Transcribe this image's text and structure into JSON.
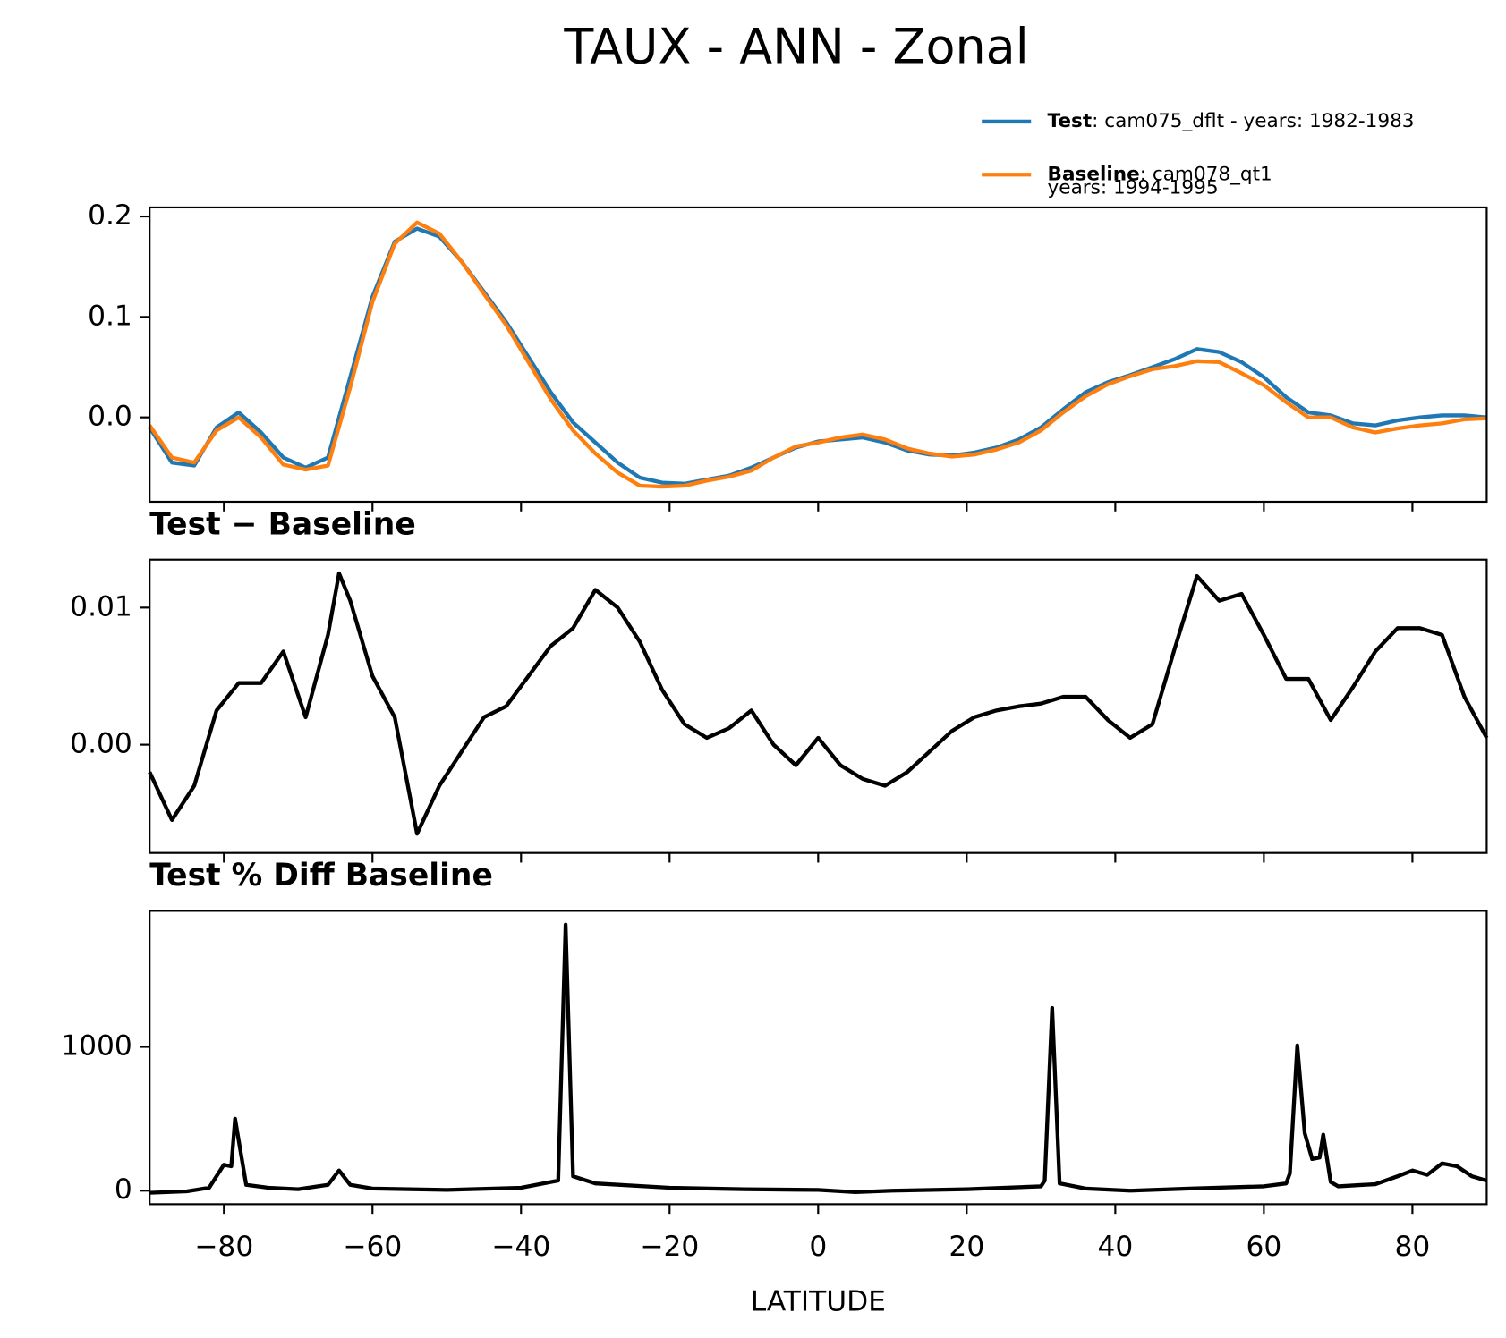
{
  "title": "TAUX - ANN - Zonal",
  "chart_data": [
    {
      "type": "line",
      "x": [
        -90,
        -87,
        -84,
        -81,
        -78,
        -75,
        -72,
        -69,
        -66,
        -63,
        -60,
        -57,
        -54,
        -51,
        -48,
        -45,
        -42,
        -39,
        -36,
        -33,
        -30,
        -27,
        -24,
        -21,
        -18,
        -15,
        -12,
        -9,
        -6,
        -3,
        0,
        3,
        6,
        9,
        12,
        15,
        18,
        21,
        24,
        27,
        30,
        33,
        36,
        39,
        42,
        45,
        48,
        51,
        54,
        57,
        60,
        63,
        66,
        69,
        72,
        75,
        78,
        81,
        84,
        87,
        90
      ],
      "series": [
        {
          "name": "Test",
          "label": ": cam075_dflt - years: 1982-1983",
          "color": "#1f77b4",
          "values": [
            -0.01,
            -0.045,
            -0.048,
            -0.01,
            0.005,
            -0.015,
            -0.04,
            -0.05,
            -0.04,
            0.04,
            0.12,
            0.175,
            0.188,
            0.18,
            0.155,
            0.125,
            0.095,
            0.06,
            0.025,
            -0.005,
            -0.025,
            -0.045,
            -0.06,
            -0.065,
            -0.066,
            -0.062,
            -0.058,
            -0.05,
            -0.04,
            -0.03,
            -0.024,
            -0.022,
            -0.02,
            -0.025,
            -0.033,
            -0.037,
            -0.038,
            -0.035,
            -0.03,
            -0.022,
            -0.01,
            0.008,
            0.025,
            0.035,
            0.042,
            0.05,
            0.058,
            0.068,
            0.065,
            0.055,
            0.04,
            0.02,
            0.005,
            0.002,
            -0.006,
            -0.008,
            -0.003,
            0.0,
            0.002,
            0.002,
            0.0
          ]
        },
        {
          "name": "Baseline",
          "label": [
            ": cam078_qt1",
            "years: 1994-1995"
          ],
          "color": "#ff7f0e",
          "values": [
            -0.008,
            -0.04,
            -0.045,
            -0.013,
            0.0,
            -0.02,
            -0.047,
            -0.052,
            -0.048,
            0.03,
            0.115,
            0.173,
            0.194,
            0.183,
            0.155,
            0.123,
            0.092,
            0.055,
            0.018,
            -0.013,
            -0.036,
            -0.055,
            -0.068,
            -0.069,
            -0.068,
            -0.063,
            -0.059,
            -0.053,
            -0.04,
            -0.029,
            -0.025,
            -0.02,
            -0.017,
            -0.022,
            -0.031,
            -0.036,
            -0.039,
            -0.037,
            -0.032,
            -0.025,
            -0.013,
            0.005,
            0.021,
            0.033,
            0.041,
            0.048,
            0.051,
            0.056,
            0.055,
            0.044,
            0.032,
            0.015,
            0.0,
            0.0,
            -0.01,
            -0.015,
            -0.011,
            -0.008,
            -0.006,
            -0.002,
            -0.001
          ]
        }
      ],
      "xlim": [
        -90,
        90
      ],
      "xticks": [
        -80,
        -60,
        -40,
        -20,
        0,
        20,
        40,
        60,
        80
      ],
      "ylim": [
        -0.084,
        0.209
      ],
      "yticks": [
        {
          "value": 0,
          "label": "0.0"
        },
        0.1,
        0.2
      ]
    },
    {
      "type": "line",
      "title": "Test − Baseline",
      "x": [
        -90,
        -87,
        -84,
        -81,
        -78,
        -75,
        -72,
        -69,
        -66,
        -64.5,
        -63,
        -60,
        -57,
        -54,
        -51,
        -48,
        -45,
        -42,
        -39,
        -36,
        -33,
        -30,
        -27,
        -24,
        -21,
        -18,
        -15,
        -12,
        -9,
        -6,
        -3,
        0,
        3,
        6,
        9,
        12,
        15,
        18,
        21,
        24,
        27,
        30,
        33,
        36,
        39,
        42,
        45,
        48,
        51,
        54,
        57,
        60,
        63,
        66,
        69,
        72,
        75,
        78,
        81,
        84,
        87,
        90
      ],
      "series": [
        {
          "name": "Test − Baseline",
          "color": "#000000",
          "values": [
            -0.002,
            -0.0055,
            -0.003,
            0.0025,
            0.0045,
            0.0045,
            0.0068,
            0.002,
            0.008,
            0.0125,
            0.0105,
            0.005,
            0.002,
            -0.0065,
            -0.003,
            -0.0005,
            0.002,
            0.0028,
            0.005,
            0.0072,
            0.0085,
            0.0113,
            0.01,
            0.0075,
            0.004,
            0.0015,
            0.0005,
            0.0012,
            0.0025,
            0.0,
            -0.0015,
            0.0005,
            -0.0015,
            -0.0025,
            -0.003,
            -0.002,
            -0.0005,
            0.001,
            0.002,
            0.0025,
            0.0028,
            0.003,
            0.0035,
            0.0035,
            0.0018,
            0.0005,
            0.0015,
            0.007,
            0.0123,
            0.0105,
            0.011,
            0.008,
            0.0048,
            0.0048,
            0.0018,
            0.0042,
            0.0068,
            0.0085,
            0.0085,
            0.008,
            0.0035,
            0.0005
          ]
        }
      ],
      "xlim": [
        -90,
        90
      ],
      "xticks": [
        -80,
        -60,
        -40,
        -20,
        0,
        20,
        40,
        60,
        80
      ],
      "ylim": [
        -0.0079,
        0.0135
      ],
      "yticks": [
        {
          "value": 0,
          "label": "0.00"
        },
        {
          "value": 0.01,
          "label": "0.01"
        }
      ]
    },
    {
      "type": "line",
      "title": "Test % Diff Baseline",
      "xlabel": "LATITUDE",
      "x": [
        -90,
        -85,
        -82,
        -80,
        -79,
        -78.5,
        -77,
        -74,
        -70,
        -66,
        -64.5,
        -63,
        -60,
        -50,
        -40,
        -35,
        -34,
        -33,
        -30,
        -20,
        -10,
        0,
        5,
        10,
        20,
        30,
        30.5,
        31.5,
        32.5,
        36,
        42,
        50,
        60,
        63,
        63.5,
        64.5,
        65.5,
        66.5,
        67.5,
        68,
        69,
        70,
        75,
        78,
        80,
        82,
        84,
        86,
        88,
        90
      ],
      "series": [
        {
          "name": "Test % Diff Baseline",
          "color": "#000000",
          "values": [
            -15,
            -5,
            20,
            180,
            170,
            500,
            40,
            20,
            10,
            40,
            140,
            40,
            15,
            5,
            20,
            70,
            1850,
            100,
            50,
            20,
            10,
            5,
            -10,
            0,
            10,
            30,
            70,
            1270,
            50,
            15,
            0,
            15,
            30,
            50,
            120,
            1010,
            400,
            220,
            230,
            390,
            60,
            30,
            45,
            100,
            140,
            110,
            190,
            170,
            100,
            70
          ]
        }
      ],
      "xlim": [
        -90,
        90
      ],
      "xticks": [
        {
          "value": -80,
          "label": "−80"
        },
        {
          "value": -60,
          "label": "−60"
        },
        {
          "value": -40,
          "label": "−40"
        },
        {
          "value": -20,
          "label": "−20"
        },
        0,
        20,
        40,
        60,
        80
      ],
      "ylim": [
        -94,
        1946
      ],
      "yticks": [
        0,
        1000
      ]
    }
  ]
}
